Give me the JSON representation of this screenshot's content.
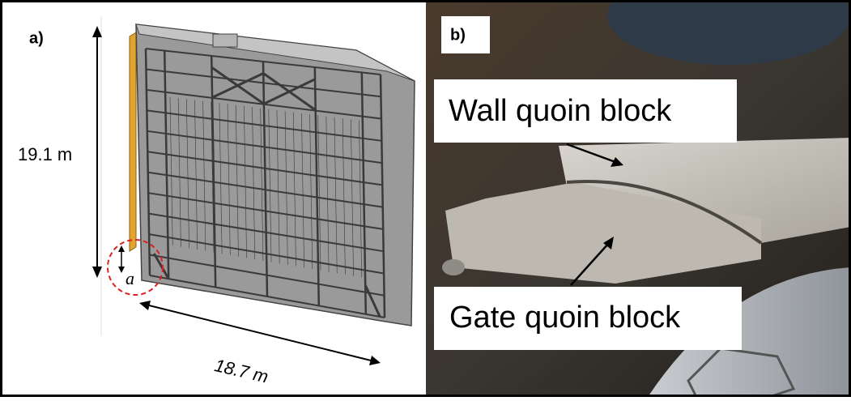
{
  "panel_a": {
    "label": "a)",
    "height_label": "19.1 m",
    "width_label": "18.7 m",
    "detail_label": "a"
  },
  "panel_b": {
    "label": "b)",
    "annotations": [
      "Wall quoin block",
      "Gate quoin block"
    ]
  }
}
